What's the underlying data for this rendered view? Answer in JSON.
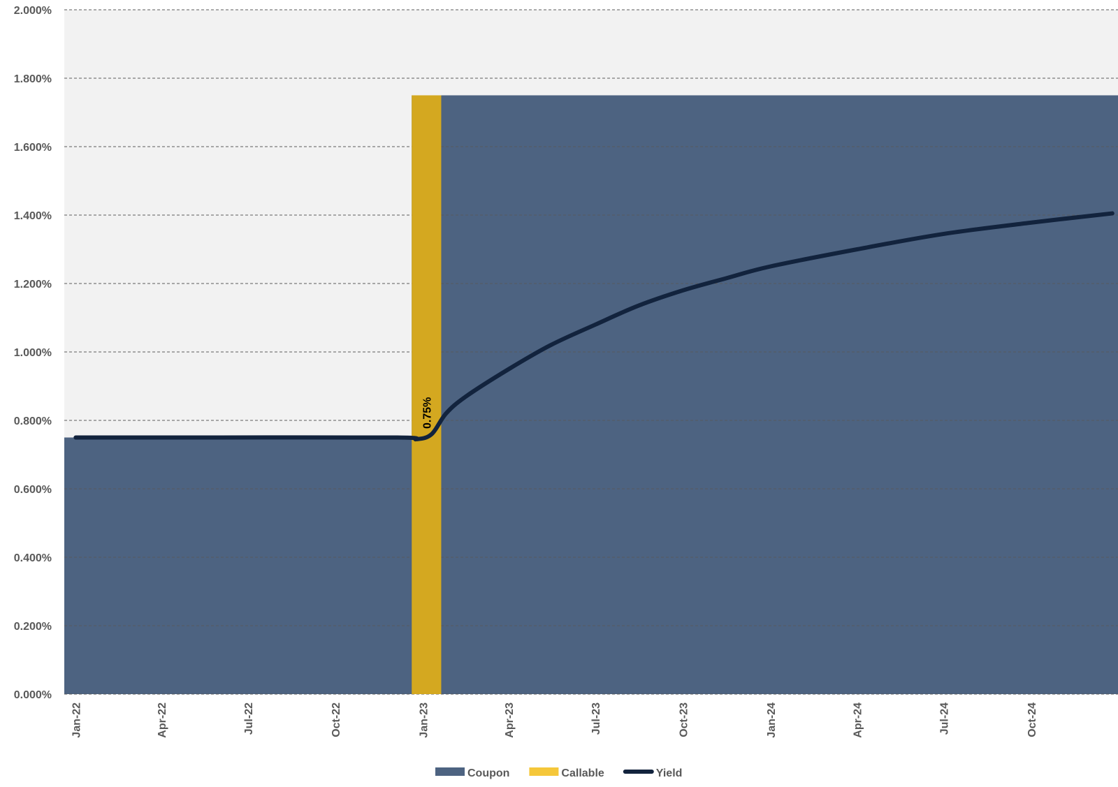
{
  "chart_data": {
    "type": "area",
    "y_axis": {
      "min": 0,
      "max": 0.02,
      "step": 0.002,
      "tick_labels": [
        "0.000%",
        "0.200%",
        "0.400%",
        "0.600%",
        "0.800%",
        "1.000%",
        "1.200%",
        "1.400%",
        "1.600%",
        "1.800%",
        "2.000%"
      ]
    },
    "x_axis": {
      "start": "2022-01-01",
      "end": "2024-12-31",
      "tick_labels": [
        {
          "date": "2022-01-01",
          "label": "Jan-22"
        },
        {
          "date": "2022-04-01",
          "label": "Apr-22"
        },
        {
          "date": "2022-07-01",
          "label": "Jul-22"
        },
        {
          "date": "2022-10-01",
          "label": "Oct-22"
        },
        {
          "date": "2023-01-01",
          "label": "Jan-23"
        },
        {
          "date": "2023-04-01",
          "label": "Apr-23"
        },
        {
          "date": "2023-07-01",
          "label": "Jul-23"
        },
        {
          "date": "2023-10-01",
          "label": "Oct-23"
        },
        {
          "date": "2024-01-01",
          "label": "Jan-24"
        },
        {
          "date": "2024-04-01",
          "label": "Apr-24"
        },
        {
          "date": "2024-07-01",
          "label": "Jul-24"
        },
        {
          "date": "2024-10-01",
          "label": "Oct-24"
        }
      ]
    },
    "grid": true,
    "legend_position": "bottom-center",
    "series": [
      {
        "name": "Coupon",
        "kind": "area",
        "color": "#4d6381",
        "points": [
          {
            "x": "2021-12-20",
            "y": 0.0075
          },
          {
            "x": "2022-12-20",
            "y": 0.0075
          },
          {
            "x": "2022-12-20",
            "y": 0.0175
          },
          {
            "x": "2024-12-31",
            "y": 0.0175
          }
        ]
      },
      {
        "name": "Callable",
        "kind": "band",
        "color": "#d4a820",
        "x_start": "2022-12-20",
        "x_end": "2023-01-20",
        "y": 0.0175,
        "label": "0.75%"
      },
      {
        "name": "Yield",
        "kind": "line",
        "color": "#12233d",
        "points": [
          {
            "x": "2022-01-01",
            "y": 0.0075
          },
          {
            "x": "2022-06-01",
            "y": 0.0075
          },
          {
            "x": "2022-12-05",
            "y": 0.0075
          },
          {
            "x": "2022-12-25",
            "y": 0.00745
          },
          {
            "x": "2023-01-10",
            "y": 0.0076
          },
          {
            "x": "2023-01-25",
            "y": 0.0082
          },
          {
            "x": "2023-02-15",
            "y": 0.0087
          },
          {
            "x": "2023-04-01",
            "y": 0.0095
          },
          {
            "x": "2023-05-15",
            "y": 0.0102
          },
          {
            "x": "2023-07-01",
            "y": 0.0108
          },
          {
            "x": "2023-08-15",
            "y": 0.01135
          },
          {
            "x": "2023-10-01",
            "y": 0.0118
          },
          {
            "x": "2023-11-15",
            "y": 0.01215
          },
          {
            "x": "2024-01-01",
            "y": 0.0125
          },
          {
            "x": "2024-04-01",
            "y": 0.013
          },
          {
            "x": "2024-07-01",
            "y": 0.01345
          },
          {
            "x": "2024-10-01",
            "y": 0.01378
          },
          {
            "x": "2024-12-25",
            "y": 0.01405
          }
        ]
      }
    ]
  },
  "legend": [
    {
      "name": "Coupon",
      "color": "#4d6381",
      "kind": "box"
    },
    {
      "name": "Callable",
      "color": "#f5c73a",
      "kind": "box"
    },
    {
      "name": "Yield",
      "color": "#12233d",
      "kind": "line"
    }
  ]
}
